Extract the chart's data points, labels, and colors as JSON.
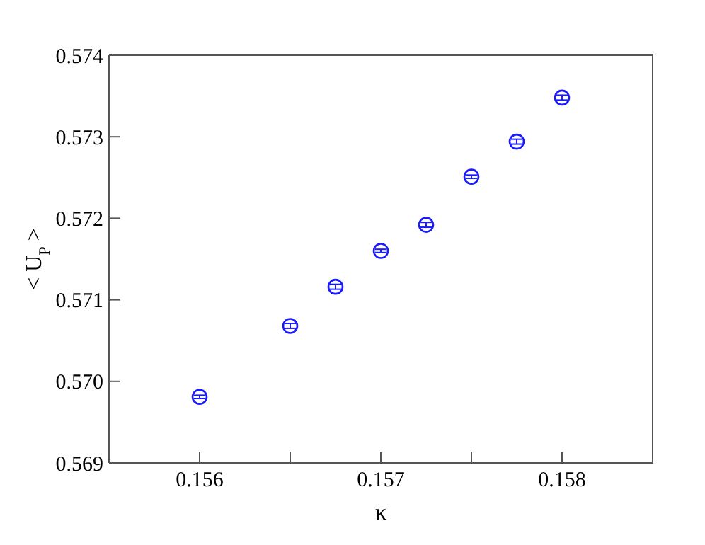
{
  "chart_data": {
    "type": "scatter",
    "xlabel": "κ",
    "ylabel": "< U$_{P}$ >",
    "x": [
      0.156,
      0.1565,
      0.15675,
      0.157,
      0.15725,
      0.1575,
      0.15775,
      0.158
    ],
    "series": [
      {
        "color": "#1a1aff",
        "values": [
          0.56981,
          0.57068,
          0.57116,
          0.5716,
          0.57192,
          0.57251,
          0.57294,
          0.57348
        ],
        "errors": [
          2e-05,
          3e-05,
          3e-05,
          2e-05,
          3e-05,
          2e-05,
          3e-05,
          3e-05
        ]
      }
    ],
    "xlim": [
      0.1555,
      0.1585
    ],
    "xticks": [
      0.156,
      {
        "value": 0.1565,
        "label": null
      },
      0.157,
      {
        "value": 0.1575,
        "label": null
      },
      0.158
    ],
    "ylim": [
      0.569,
      0.574
    ],
    "yticks": [
      0.569,
      {
        "value": 0.57,
        "label": "0.570"
      },
      0.571,
      0.572,
      0.573,
      0.574
    ],
    "marker": "circle"
  }
}
